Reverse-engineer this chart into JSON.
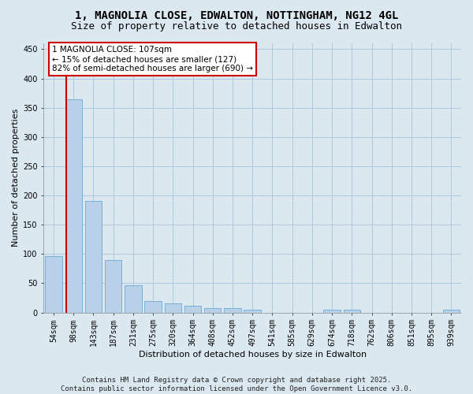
{
  "title": "1, MAGNOLIA CLOSE, EDWALTON, NOTTINGHAM, NG12 4GL",
  "subtitle": "Size of property relative to detached houses in Edwalton",
  "xlabel": "Distribution of detached houses by size in Edwalton",
  "ylabel": "Number of detached properties",
  "categories": [
    "54sqm",
    "98sqm",
    "143sqm",
    "187sqm",
    "231sqm",
    "275sqm",
    "320sqm",
    "364sqm",
    "408sqm",
    "452sqm",
    "497sqm",
    "541sqm",
    "585sqm",
    "629sqm",
    "674sqm",
    "718sqm",
    "762sqm",
    "806sqm",
    "851sqm",
    "895sqm",
    "939sqm"
  ],
  "values": [
    97,
    365,
    190,
    90,
    47,
    20,
    15,
    12,
    8,
    8,
    5,
    0,
    0,
    0,
    5,
    5,
    0,
    0,
    0,
    0,
    5
  ],
  "bar_color": "#b8d0e8",
  "bar_edge_color": "#6aaad4",
  "highlight_color": "#cc0000",
  "annotation_text": "1 MAGNOLIA CLOSE: 107sqm\n← 15% of detached houses are smaller (127)\n82% of semi-detached houses are larger (690) →",
  "annotation_box_color": "#ffffff",
  "annotation_box_edge": "#cc0000",
  "ylim": [
    0,
    460
  ],
  "yticks": [
    0,
    50,
    100,
    150,
    200,
    250,
    300,
    350,
    400,
    450
  ],
  "background_color": "#dce8f0",
  "plot_bg_color": "#dce8f0",
  "grid_color": "#afc8dc",
  "footer_text": "Contains HM Land Registry data © Crown copyright and database right 2025.\nContains public sector information licensed under the Open Government Licence v3.0.",
  "title_fontsize": 10,
  "subtitle_fontsize": 9,
  "axis_label_fontsize": 8,
  "tick_fontsize": 7,
  "annotation_fontsize": 7.5,
  "footer_fontsize": 6.5,
  "line_x_index": 0.62
}
